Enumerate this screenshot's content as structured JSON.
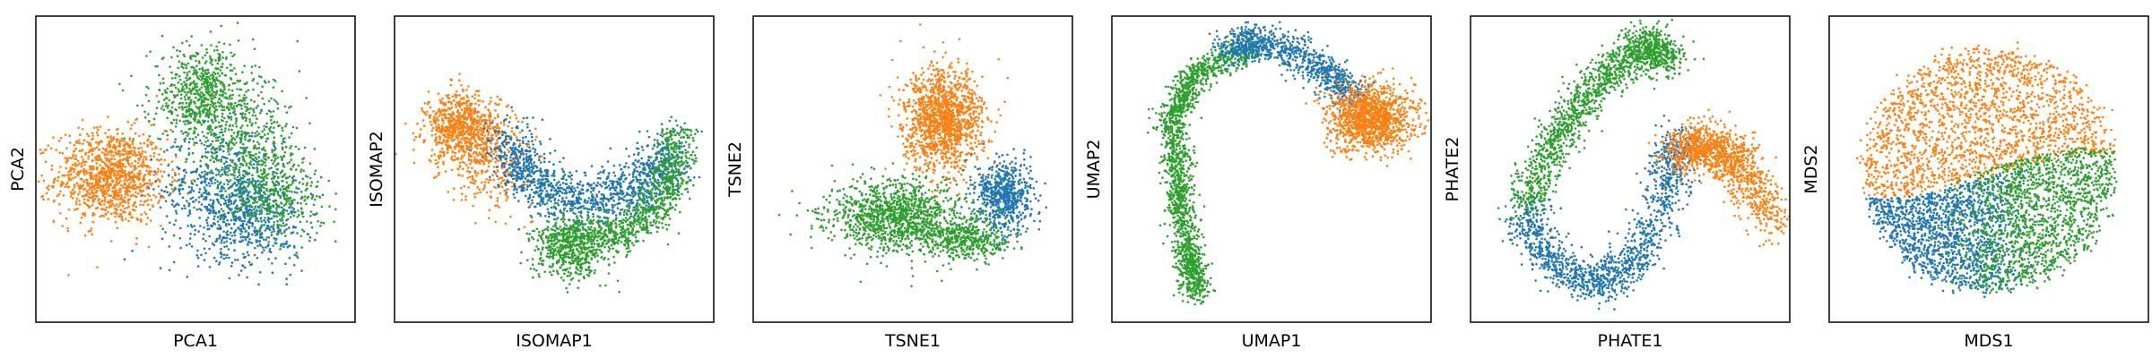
{
  "figure": {
    "colors": {
      "blue": "#1f77b4",
      "orange": "#ff7f0e",
      "green": "#2ca02c"
    }
  },
  "chart_data": [
    {
      "type": "scatter",
      "xlabel": "PCA1",
      "ylabel": "PCA2",
      "ticks": "none",
      "grid": false,
      "series": [
        {
          "color": "#ff7f0e",
          "clusters": [
            {
              "cx": -0.55,
              "cy": -0.05,
              "sx": 0.18,
              "sy": 0.16,
              "n": 1100
            }
          ]
        },
        {
          "color": "#1f77b4",
          "clusters": [
            {
              "cx": 0.18,
              "cy": -0.15,
              "sx": 0.2,
              "sy": 0.22,
              "n": 600
            },
            {
              "cx": 0.4,
              "cy": -0.35,
              "sx": 0.15,
              "sy": 0.15,
              "n": 350
            }
          ]
        },
        {
          "color": "#2ca02c",
          "clusters": [
            {
              "cx": 0.05,
              "cy": 0.5,
              "sx": 0.17,
              "sy": 0.17,
              "n": 700
            },
            {
              "cx": 0.35,
              "cy": 0.1,
              "sx": 0.18,
              "sy": 0.2,
              "n": 450
            },
            {
              "cx": 0.55,
              "cy": -0.2,
              "sx": 0.14,
              "sy": 0.14,
              "n": 300
            }
          ]
        }
      ]
    },
    {
      "type": "scatter",
      "xlabel": "ISOMAP1",
      "ylabel": "ISOMAP2",
      "ticks": "none",
      "grid": false,
      "series": [
        {
          "color": "#ff7f0e",
          "clusters": [
            {
              "cx": -0.6,
              "cy": 0.28,
              "sx": 0.12,
              "sy": 0.12,
              "n": 750
            },
            {
              "cx": -0.4,
              "cy": 0.05,
              "sx": 0.13,
              "sy": 0.15,
              "n": 300
            }
          ]
        },
        {
          "color": "#1f77b4",
          "arc": {
            "cx": 0.25,
            "cy": 0.3,
            "rx": 0.55,
            "ry": 0.5,
            "a0": 190,
            "a1": 340,
            "width": 0.09,
            "n": 1300
          }
        },
        {
          "color": "#2ca02c",
          "arc": {
            "cx": 0.25,
            "cy": 0.15,
            "rx": 0.55,
            "ry": 0.6,
            "a0": 250,
            "a1": 370,
            "width": 0.07,
            "n": 900
          },
          "clusters": [
            {
              "cx": 0.1,
              "cy": -0.55,
              "sx": 0.12,
              "sy": 0.1,
              "n": 500
            }
          ]
        }
      ]
    },
    {
      "type": "scatter",
      "xlabel": "TSNE1",
      "ylabel": "TSNE2",
      "ticks": "none",
      "grid": false,
      "series": [
        {
          "color": "#ff7f0e",
          "clusters": [
            {
              "cx": 0.2,
              "cy": 0.33,
              "sx": 0.13,
              "sy": 0.17,
              "n": 1300
            }
          ]
        },
        {
          "color": "#1f77b4",
          "clusters": [
            {
              "cx": 0.6,
              "cy": -0.18,
              "sx": 0.09,
              "sy": 0.12,
              "n": 650
            }
          ]
        },
        {
          "color": "#2ca02c",
          "clusters": [
            {
              "cx": -0.1,
              "cy": -0.32,
              "sx": 0.22,
              "sy": 0.12,
              "n": 1200
            },
            {
              "cx": 0.35,
              "cy": -0.48,
              "sx": 0.14,
              "sy": 0.07,
              "n": 400
            }
          ]
        }
      ]
    },
    {
      "type": "scatter",
      "xlabel": "UMAP1",
      "ylabel": "UMAP2",
      "ticks": "none",
      "grid": false,
      "series": [
        {
          "color": "#2ca02c",
          "path": {
            "pts": [
              [
                -0.1,
                0.85
              ],
              [
                -0.5,
                0.65
              ],
              [
                -0.65,
                0.35
              ],
              [
                -0.6,
                -0.1
              ],
              [
                -0.55,
                -0.55
              ],
              [
                -0.48,
                -0.85
              ]
            ],
            "width": 0.05,
            "n": 1700
          }
        },
        {
          "color": "#1f77b4",
          "path": {
            "pts": [
              [
                -0.3,
                0.82
              ],
              [
                -0.05,
                0.88
              ],
              [
                0.3,
                0.7
              ],
              [
                0.55,
                0.5
              ]
            ],
            "width": 0.06,
            "n": 900
          }
        },
        {
          "color": "#ff7f0e",
          "clusters": [
            {
              "cx": 0.65,
              "cy": 0.35,
              "sx": 0.14,
              "sy": 0.11,
              "n": 1200
            }
          ]
        }
      ]
    },
    {
      "type": "scatter",
      "xlabel": "PHATE1",
      "ylabel": "PHATE2",
      "ticks": "none",
      "grid": false,
      "series": [
        {
          "color": "#2ca02c",
          "path": {
            "pts": [
              [
                -0.7,
                -0.3
              ],
              [
                -0.5,
                0.2
              ],
              [
                -0.2,
                0.6
              ],
              [
                0.1,
                0.85
              ],
              [
                0.25,
                0.75
              ]
            ],
            "width": 0.07,
            "n": 1500
          }
        },
        {
          "color": "#1f77b4",
          "path": {
            "pts": [
              [
                -0.7,
                -0.3
              ],
              [
                -0.5,
                -0.65
              ],
              [
                -0.2,
                -0.8
              ],
              [
                0.05,
                -0.6
              ],
              [
                0.25,
                -0.1
              ],
              [
                0.3,
                0.2
              ]
            ],
            "width": 0.07,
            "n": 1300
          }
        },
        {
          "color": "#ff7f0e",
          "path": {
            "pts": [
              [
                0.3,
                0.1
              ],
              [
                0.5,
                0.18
              ],
              [
                0.7,
                0.05
              ],
              [
                0.95,
                -0.4
              ]
            ],
            "width": 0.08,
            "n": 1100
          }
        }
      ]
    },
    {
      "type": "scatter",
      "xlabel": "MDS1",
      "ylabel": "MDS2",
      "ticks": "none",
      "grid": false,
      "series": [
        {
          "color": "#ff7f0e",
          "disk": {
            "cx": 0,
            "cy": 0,
            "r": 0.82,
            "region": "top",
            "n": 1800
          }
        },
        {
          "color": "#1f77b4",
          "disk": {
            "cx": 0,
            "cy": 0,
            "r": 0.82,
            "region": "bottom-left",
            "n": 1400
          }
        },
        {
          "color": "#2ca02c",
          "disk": {
            "cx": 0,
            "cy": 0,
            "r": 0.82,
            "region": "bottom-right",
            "n": 1500
          }
        }
      ]
    }
  ]
}
